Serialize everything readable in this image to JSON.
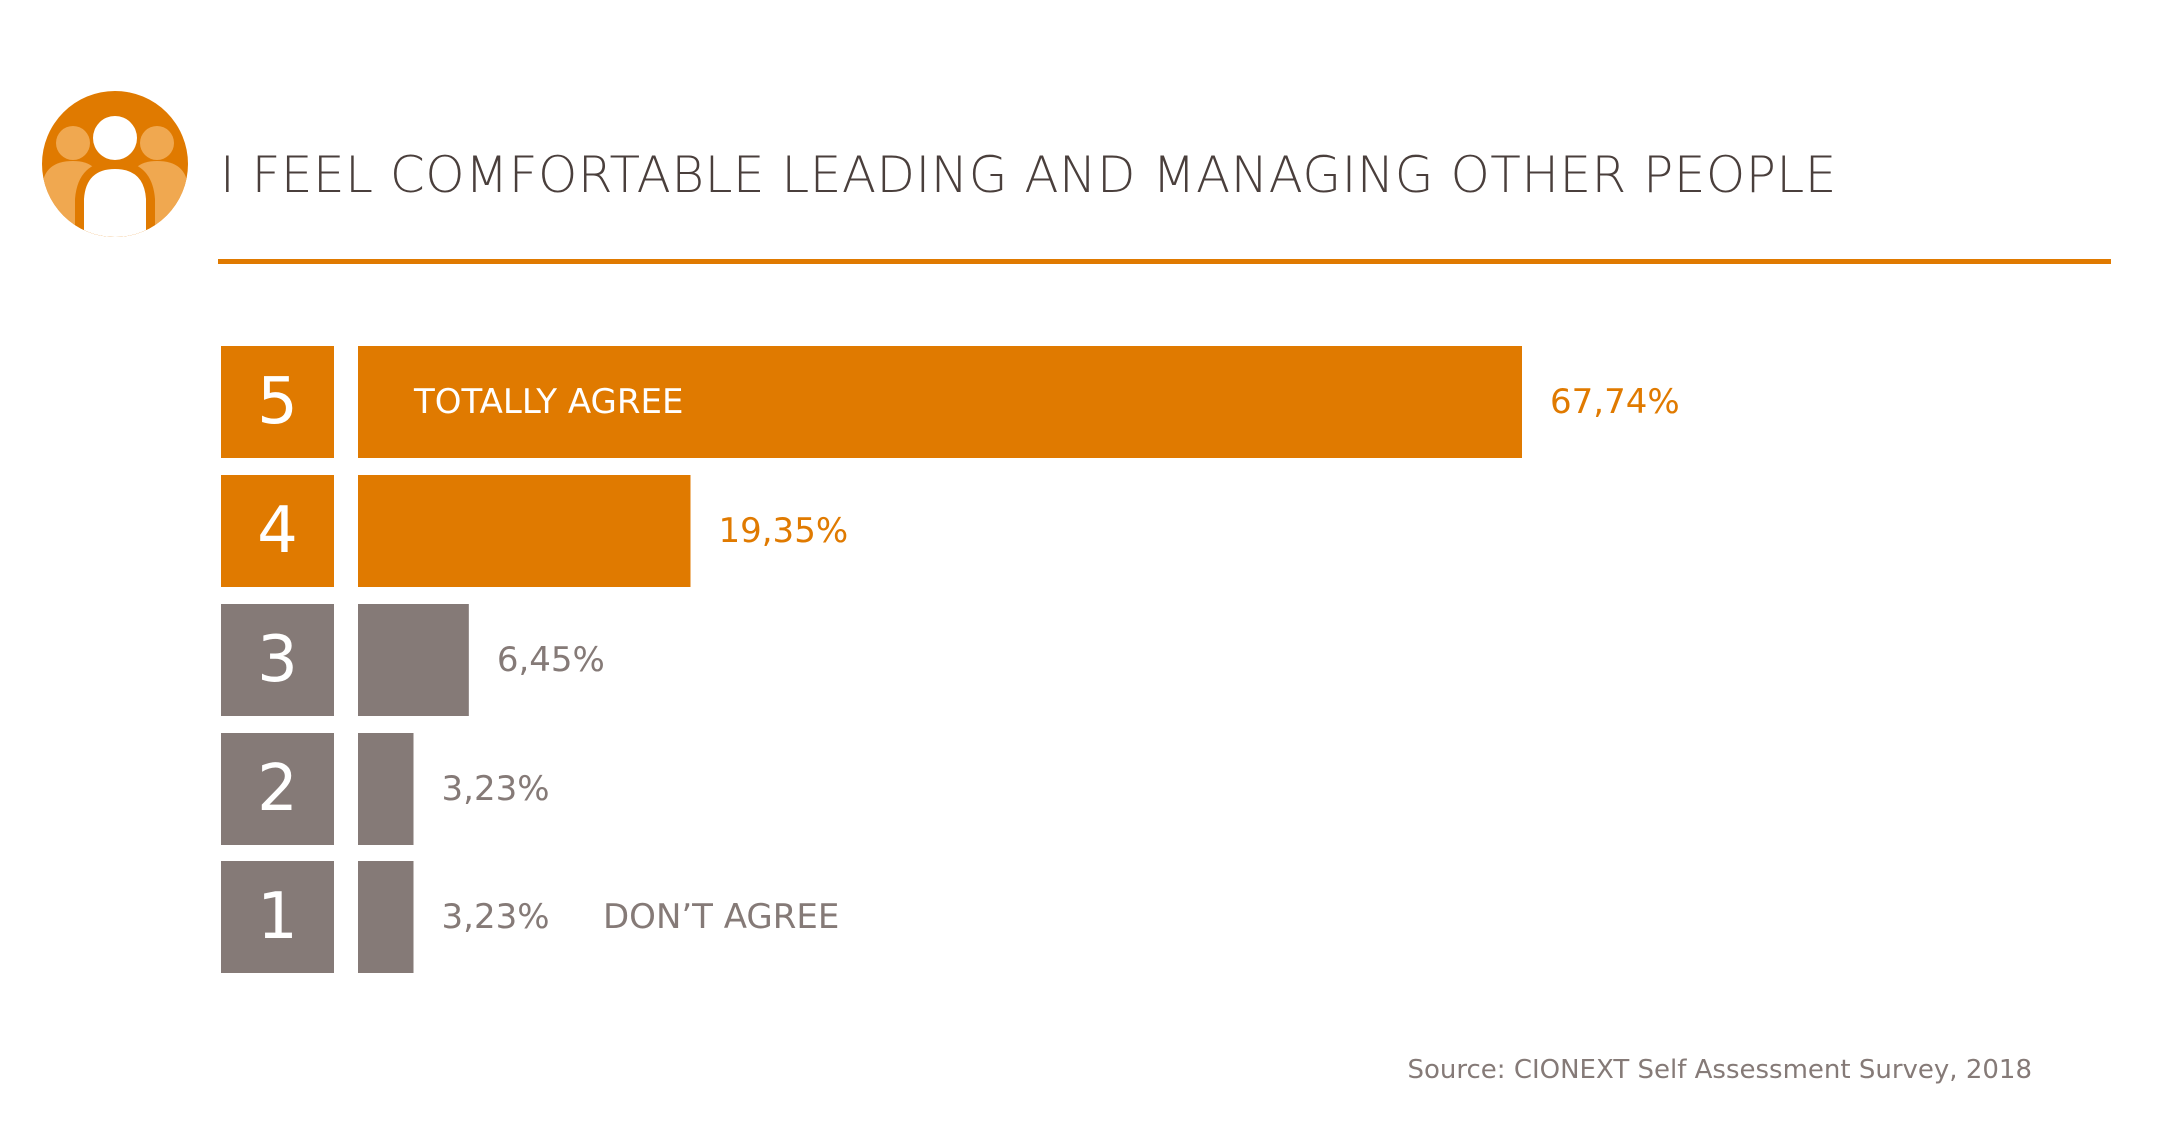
{
  "colors": {
    "accent": "#e07a00",
    "accent_light": "#f0a850",
    "neutral": "#857a77",
    "title_text": "#4a3f3c"
  },
  "logo_icon": "people-group-icon",
  "chart_data": {
    "type": "bar",
    "orientation": "horizontal",
    "title": "I FEEL COMFORTABLE LEADING AND MANAGING OTHER PEOPLE",
    "categories": [
      "5",
      "4",
      "3",
      "2",
      "1"
    ],
    "values": [
      67.74,
      19.35,
      6.45,
      3.23,
      3.23
    ],
    "value_labels": [
      "67,74%",
      "19,35%",
      "6,45%",
      "3,23%",
      "3,23%"
    ],
    "category_colors": [
      "#e07a00",
      "#e07a00",
      "#857a77",
      "#857a77",
      "#857a77"
    ],
    "annotations": {
      "top": "TOTALLY AGREE",
      "bottom": "DON’T AGREE"
    },
    "xlim": [
      0,
      100
    ],
    "grid": false
  },
  "source": "Source: CIONEXT Self Assessment Survey, 2018"
}
